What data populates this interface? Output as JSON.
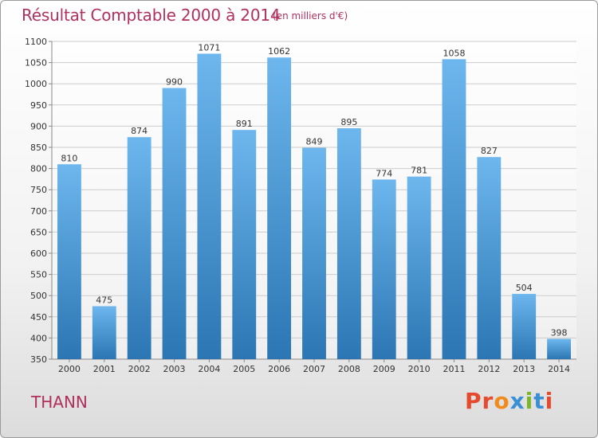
{
  "header": {
    "title": "Résultat Comptable 2000 à 2014",
    "subtitle": "(en milliers d'€)"
  },
  "footer": {
    "place": "THANN",
    "logo_text": "Proxiti"
  },
  "colors": {
    "title": "#b0305e",
    "bar_top": "#6db6ee",
    "bar_bottom": "#2b76b3",
    "grid": "#cccccc",
    "logo": [
      "#e64a2e",
      "#e64a2e",
      "#f08b1d",
      "#3a8fd6",
      "#7ab52a",
      "#3a8fd6",
      "#e64a2e"
    ]
  },
  "chart_data": {
    "type": "bar",
    "title": "Résultat Comptable 2000 à 2014",
    "subtitle": "(en milliers d'€)",
    "categories": [
      "2000",
      "2001",
      "2002",
      "2003",
      "2004",
      "2005",
      "2006",
      "2007",
      "2008",
      "2009",
      "2010",
      "2011",
      "2012",
      "2013",
      "2014"
    ],
    "values": [
      810,
      475,
      874,
      990,
      1071,
      891,
      1062,
      849,
      895,
      774,
      781,
      1058,
      827,
      504,
      398
    ],
    "ylim": [
      350,
      1100
    ],
    "yticks": [
      350,
      400,
      450,
      500,
      550,
      600,
      650,
      700,
      750,
      800,
      850,
      900,
      950,
      1000,
      1050,
      1100
    ],
    "grid": true,
    "data_labels": true
  }
}
